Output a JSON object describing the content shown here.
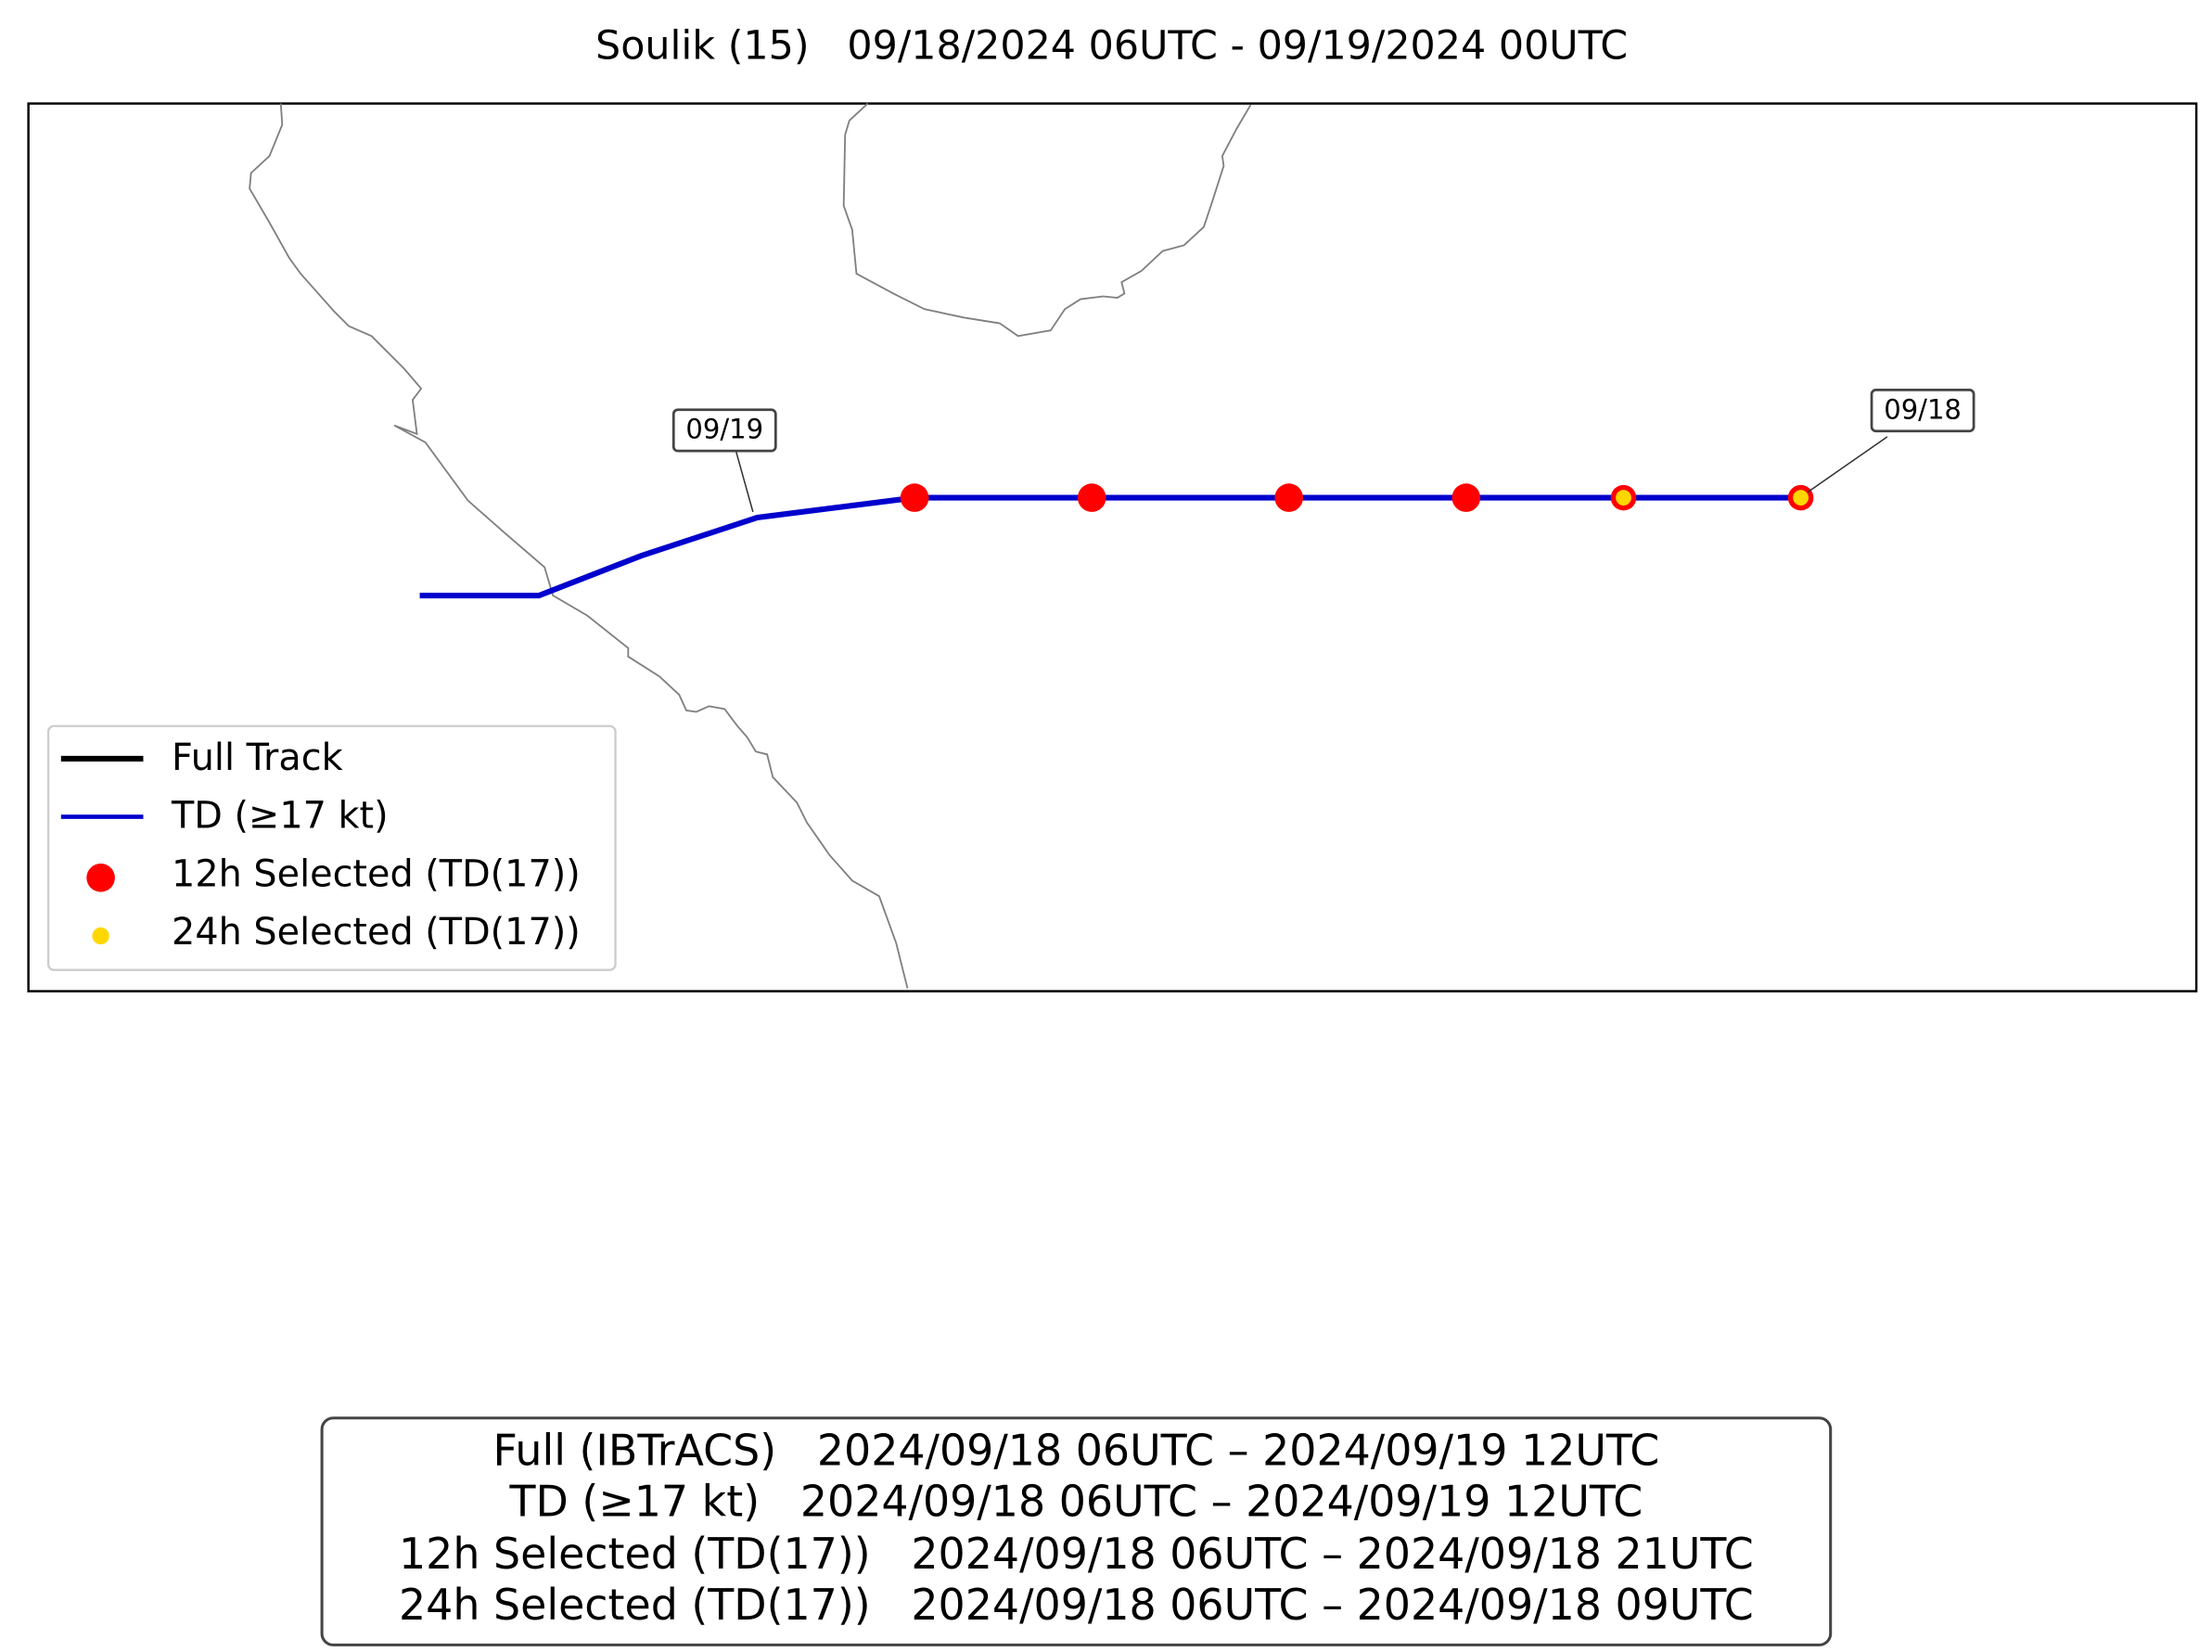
{
  "title": "Soulik (15)   09/18/2024 06UTC - 09/19/2024 00UTC",
  "legend": [
    "Full Track",
    "TD (≥17 kt)",
    "12h Selected (TD(17))",
    "24h Selected (TD(17))"
  ],
  "annotations": [
    "09/19",
    "09/18"
  ],
  "summary": [
    "Full (IBTrACS)   2024/09/18 06UTC – 2024/09/19 12UTC",
    "TD (≥17 kt)   2024/09/18 06UTC – 2024/09/19 12UTC",
    "12h Selected (TD(17))   2024/09/18 06UTC – 2024/09/18 21UTC",
    "24h Selected (TD(17))   2024/09/18 06UTC – 2024/09/18 09UTC"
  ]
}
